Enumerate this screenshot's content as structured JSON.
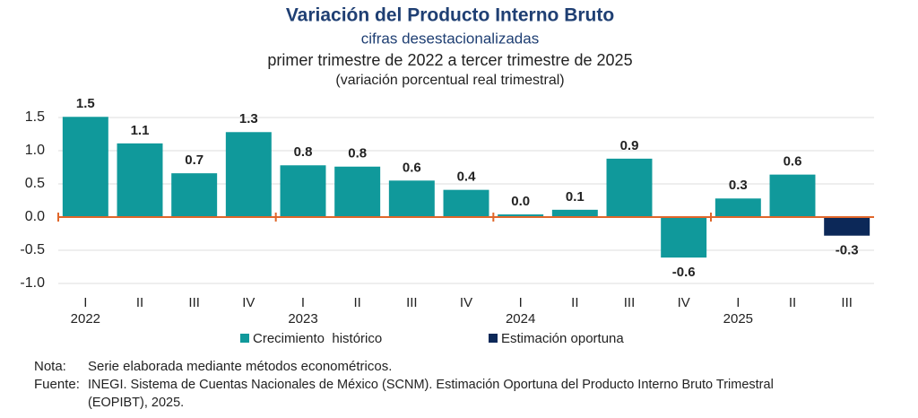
{
  "chart_data": {
    "type": "bar",
    "title": "Variación del Producto Interno Bruto",
    "subtitle": "cifras desestacionalizadas",
    "subtitle2": "primer trimestre de 2022 a tercer trimestre de 2025",
    "subtitle3": "(variación porcentual real trimestral)",
    "categories": [
      "I",
      "II",
      "III",
      "IV",
      "I",
      "II",
      "III",
      "IV",
      "I",
      "II",
      "III",
      "IV",
      "I",
      "II",
      "III"
    ],
    "years": [
      "2022",
      null,
      null,
      null,
      "2023",
      null,
      null,
      null,
      "2024",
      null,
      null,
      null,
      "2025",
      null,
      null
    ],
    "series": [
      {
        "name": "Crecimiento  histórico",
        "color": "#10999b",
        "values": [
          1.51,
          1.11,
          0.66,
          1.28,
          0.78,
          0.76,
          0.55,
          0.41,
          0.04,
          0.11,
          0.88,
          -0.61,
          0.28,
          0.64,
          null
        ],
        "value_labels": [
          "1.5",
          "1.1",
          "0.7",
          "1.3",
          "0.8",
          "0.8",
          "0.6",
          "0.4",
          "0.0",
          "0.1",
          "0.9",
          "-0.6",
          "0.3",
          "0.6",
          null
        ]
      },
      {
        "name": "Estimación oportuna",
        "color": "#0c2858",
        "values": [
          null,
          null,
          null,
          null,
          null,
          null,
          null,
          null,
          null,
          null,
          null,
          null,
          null,
          null,
          -0.28
        ],
        "value_labels": [
          null,
          null,
          null,
          null,
          null,
          null,
          null,
          null,
          null,
          null,
          null,
          null,
          null,
          null,
          "-0.3"
        ]
      }
    ],
    "ylim": [
      -1.0,
      1.5
    ],
    "yticks": [
      {
        "value": -1.0,
        "label": "-1.0"
      },
      -0.5,
      {
        "value": 0,
        "label": "0.0"
      },
      0.5,
      {
        "value": 1.0,
        "label": "1.0"
      },
      1.5
    ],
    "grid": true,
    "zero_line_color": "#e0662a",
    "notes": [
      {
        "label": "Nota:",
        "text": "Serie elaborada mediante métodos econométricos."
      },
      {
        "label": "Fuente:",
        "text": "INEGI. Sistema de Cuentas Nacionales de México (SCNM). Estimación Oportuna del Producto Interno Bruto Trimestral",
        "text2": "(EOPIBT), 2025."
      }
    ]
  }
}
